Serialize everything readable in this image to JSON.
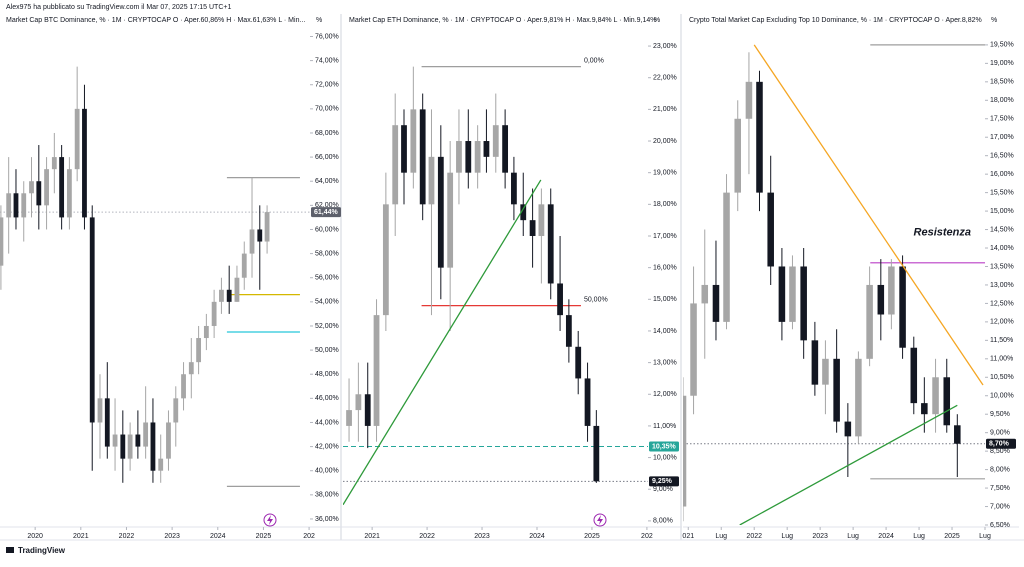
{
  "header": "Alex975 ha pubblicato su TradingView.com il Mar 07, 2025 17:15 UTC+1",
  "footer": "TradingView",
  "chart_data": [
    {
      "type": "candlestick",
      "title": "Market Cap BTC Dominance, % · 1M · CRYPTOCAP  O · Aper.60,86%  H · Max.61,63%  L · Min...",
      "unit_label": "%",
      "up_color": "#a6a6a6",
      "down_color": "#131722",
      "grid": false,
      "xlim": [
        2019.23,
        2026.02
      ],
      "ylim": [
        35.5,
        77.2
      ],
      "xticks": [
        2020,
        2021,
        2022,
        2023,
        2024,
        2025,
        {
          "value": 2026,
          "label": "202"
        }
      ],
      "yticks": [
        {
          "value": 36,
          "label": "36,00%"
        },
        {
          "value": 38,
          "label": "38,00%"
        },
        {
          "value": 40,
          "label": "40,00%"
        },
        {
          "value": 42,
          "label": "42,00%"
        },
        {
          "value": 44,
          "label": "44,00%"
        },
        {
          "value": 46,
          "label": "46,00%"
        },
        {
          "value": 48,
          "label": "48,00%"
        },
        {
          "value": 50,
          "label": "50,00%"
        },
        {
          "value": 52,
          "label": "52,00%"
        },
        {
          "value": 54,
          "label": "54,00%"
        },
        {
          "value": 56,
          "label": "56,00%"
        },
        {
          "value": 58,
          "label": "58,00%"
        },
        {
          "value": 60,
          "label": "60,00%"
        },
        {
          "value": 62,
          "label": "62,00%"
        },
        {
          "value": 64,
          "label": "64,00%"
        },
        {
          "value": 66,
          "label": "66,00%"
        },
        {
          "value": 68,
          "label": "68,00%"
        },
        {
          "value": 70,
          "label": "70,00%"
        },
        {
          "value": 72,
          "label": "72,00%"
        },
        {
          "value": 74,
          "label": "74,00%"
        },
        {
          "value": 76,
          "label": "76,00%"
        }
      ],
      "x": [
        2019.25,
        2019.42,
        2019.58,
        2019.75,
        2019.92,
        2020.08,
        2020.25,
        2020.42,
        2020.58,
        2020.75,
        2020.92,
        2021.08,
        2021.25,
        2021.42,
        2021.58,
        2021.75,
        2021.92,
        2022.08,
        2022.25,
        2022.42,
        2022.58,
        2022.75,
        2022.92,
        2023.08,
        2023.25,
        2023.42,
        2023.58,
        2023.75,
        2023.92,
        2024.08,
        2024.25,
        2024.42,
        2024.58,
        2024.75,
        2024.92,
        2025.08
      ],
      "candles": [
        [
          57,
          62,
          55,
          61
        ],
        [
          61,
          66,
          58,
          63
        ],
        [
          63,
          65,
          60,
          61
        ],
        [
          61,
          64,
          59,
          63
        ],
        [
          63,
          66,
          61,
          64
        ],
        [
          64,
          67,
          60,
          62
        ],
        [
          62,
          66,
          60,
          65
        ],
        [
          65,
          68,
          63,
          66
        ],
        [
          66,
          67,
          60,
          61
        ],
        [
          61,
          66,
          60,
          65
        ],
        [
          65,
          73.5,
          64,
          70
        ],
        [
          70,
          72,
          60,
          61
        ],
        [
          61,
          62,
          40,
          44
        ],
        [
          44,
          48,
          41,
          46
        ],
        [
          46,
          49,
          41,
          42
        ],
        [
          42,
          46,
          40,
          43
        ],
        [
          43,
          45,
          39,
          41
        ],
        [
          41,
          44,
          40,
          43
        ],
        [
          43,
          45,
          41,
          42
        ],
        [
          42,
          47,
          41,
          44
        ],
        [
          44,
          46,
          39,
          40
        ],
        [
          40,
          43,
          39,
          41
        ],
        [
          41,
          45,
          40,
          44
        ],
        [
          44,
          47,
          42,
          46
        ],
        [
          46,
          49,
          45,
          48
        ],
        [
          48,
          51,
          46,
          49
        ],
        [
          49,
          52,
          48,
          51
        ],
        [
          51,
          53,
          50,
          52
        ],
        [
          52,
          55,
          51,
          54
        ],
        [
          54,
          56,
          53,
          55
        ],
        [
          55,
          57,
          53,
          54
        ],
        [
          54,
          57,
          54,
          56
        ],
        [
          56,
          59,
          55,
          58
        ],
        [
          58,
          64.3,
          56,
          60
        ],
        [
          60,
          62,
          55,
          59
        ],
        [
          59,
          62,
          58,
          61.44
        ]
      ],
      "hlines": [
        {
          "value": 61.44,
          "color": "#b2b5be",
          "style": "dotted"
        },
        {
          "value": 64.3,
          "from": 2024.2,
          "to": 2025.8,
          "color": "#9e9e9e",
          "style": "solid"
        },
        {
          "value": 54.6,
          "from": 2024.2,
          "to": 2025.8,
          "color": "#d4b800",
          "style": "solid"
        },
        {
          "value": 51.5,
          "from": 2024.2,
          "to": 2025.8,
          "color": "#26c6da",
          "style": "solid"
        },
        {
          "value": 38.7,
          "from": 2024.2,
          "to": 2025.8,
          "color": "#9e9e9e",
          "style": "solid"
        }
      ],
      "trendlines": [],
      "price_labels": [
        {
          "value": 61.44,
          "label": "61,44%",
          "color": "#5d606b"
        }
      ]
    },
    {
      "type": "candlestick",
      "title": "Market Cap ETH Dominance, % · 1M · CRYPTOCAP  O · Aper.9,81%  H · Max.9,84%  L · Min.9,14%",
      "unit_label": "%",
      "up_color": "#a6a6a6",
      "down_color": "#131722",
      "grid": false,
      "xlim": [
        2020.47,
        2026.02
      ],
      "ylim": [
        7.87,
        23.76
      ],
      "xticks": [
        2021,
        2022,
        2023,
        2024,
        2025,
        {
          "value": 2026,
          "label": "202"
        }
      ],
      "yticks": [
        {
          "value": 8,
          "label": "8,00%"
        },
        {
          "value": 9,
          "label": "9,00%"
        },
        {
          "value": 10,
          "label": "10,00%"
        },
        {
          "value": 11,
          "label": "11,00%"
        },
        {
          "value": 12,
          "label": "12,00%"
        },
        {
          "value": 13,
          "label": "13,00%"
        },
        {
          "value": 14,
          "label": "14,00%"
        },
        {
          "value": 15,
          "label": "15,00%"
        },
        {
          "value": 16,
          "label": "16,00%"
        },
        {
          "value": 17,
          "label": "17,00%"
        },
        {
          "value": 18,
          "label": "18,00%"
        },
        {
          "value": 19,
          "label": "19,00%"
        },
        {
          "value": 20,
          "label": "20,00%"
        },
        {
          "value": 21,
          "label": "21,00%"
        },
        {
          "value": 22,
          "label": "22,00%"
        },
        {
          "value": 23,
          "label": "23,00%"
        }
      ],
      "x": [
        2020.58,
        2020.75,
        2020.92,
        2021.08,
        2021.25,
        2021.42,
        2021.58,
        2021.75,
        2021.92,
        2022.08,
        2022.25,
        2022.42,
        2022.58,
        2022.75,
        2022.92,
        2023.08,
        2023.25,
        2023.42,
        2023.58,
        2023.75,
        2023.92,
        2024.08,
        2024.25,
        2024.42,
        2024.58,
        2024.75,
        2024.92,
        2025.08
      ],
      "candles": [
        [
          11,
          12.5,
          10.5,
          11.5
        ],
        [
          11.5,
          13,
          10.5,
          12
        ],
        [
          12,
          13,
          10.3,
          11
        ],
        [
          11,
          15,
          10.5,
          14.5
        ],
        [
          14.5,
          19,
          14,
          18
        ],
        [
          18,
          21.5,
          17,
          20.5
        ],
        [
          20.5,
          21,
          18,
          19
        ],
        [
          19,
          22.35,
          18.5,
          21
        ],
        [
          21,
          21.5,
          17.5,
          18
        ],
        [
          18,
          21,
          14.5,
          19.5
        ],
        [
          19.5,
          20.5,
          15,
          16
        ],
        [
          16,
          20,
          14,
          19
        ],
        [
          19,
          21,
          18,
          20
        ],
        [
          20,
          21,
          18.5,
          19
        ],
        [
          19,
          20.5,
          18.5,
          20
        ],
        [
          20,
          21,
          19,
          19.5
        ],
        [
          19.5,
          21.5,
          19,
          20.5
        ],
        [
          20.5,
          21,
          18.5,
          19
        ],
        [
          19,
          19.5,
          17.5,
          18
        ],
        [
          18,
          19,
          17,
          17.5
        ],
        [
          17.5,
          18.5,
          16,
          17
        ],
        [
          17,
          18.5,
          15.5,
          18
        ],
        [
          18,
          18.5,
          15,
          15.5
        ],
        [
          15.5,
          17,
          14,
          14.5
        ],
        [
          14.5,
          15,
          13,
          13.5
        ],
        [
          13.5,
          14,
          12,
          12.5
        ],
        [
          12.5,
          13,
          10.5,
          11
        ],
        [
          11,
          11.5,
          9.2,
          9.25
        ]
      ],
      "hlines": [
        {
          "value": 10.35,
          "color": "#26a69a",
          "style": "dashed"
        },
        {
          "value": 9.25,
          "color": "#787b86",
          "style": "dotted"
        },
        {
          "value": 22.35,
          "from": 2021.9,
          "to": 2024.8,
          "color": "#9e9e9e",
          "style": "solid",
          "label": "0,00%",
          "label_position": "right"
        },
        {
          "value": 14.8,
          "from": 2021.9,
          "to": 2024.8,
          "color": "#e53935",
          "style": "solid",
          "label": "50,00%",
          "label_position": "right"
        }
      ],
      "trendlines": [
        {
          "x": [
            2020.47,
            2024.07
          ],
          "y": [
            8.51,
            18.77
          ],
          "color": "#2e9a3a"
        }
      ],
      "price_labels": [
        {
          "value": 10.35,
          "label": "10,35%",
          "color": "#26a69a"
        },
        {
          "value": 9.25,
          "label": "9,25%",
          "color": "#131722"
        }
      ]
    },
    {
      "type": "candlestick",
      "title": "Crypto Total Market Cap Excluding Top 10 Dominance, % · 1M · CRYPTOCAP  O · Aper.8,82%",
      "unit_label": "%",
      "up_color": "#a6a6a6",
      "down_color": "#131722",
      "grid": false,
      "xlim": [
        2020.92,
        2025.5
      ],
      "ylim": [
        6.5,
        20.12
      ],
      "xticks": [
        {
          "value": 2021,
          "label": "021"
        },
        {
          "value": 2021.5,
          "label": "Lug"
        },
        2022,
        {
          "value": 2022.5,
          "label": "Lug"
        },
        2023,
        {
          "value": 2023.5,
          "label": "Lug"
        },
        2024,
        {
          "value": 2024.5,
          "label": "Lug"
        },
        2025,
        {
          "value": 2025.5,
          "label": "Lug"
        }
      ],
      "yticks": [
        {
          "value": 6.5,
          "label": "6,50%"
        },
        {
          "value": 7,
          "label": "7,00%"
        },
        {
          "value": 7.5,
          "label": "7,50%"
        },
        {
          "value": 8,
          "label": "8,00%"
        },
        {
          "value": 8.5,
          "label": "8,50%"
        },
        {
          "value": 9,
          "label": "9,00%"
        },
        {
          "value": 9.5,
          "label": "9,50%"
        },
        {
          "value": 10,
          "label": "10,00%"
        },
        {
          "value": 10.5,
          "label": "10,50%"
        },
        {
          "value": 11,
          "label": "11,00%"
        },
        {
          "value": 11.5,
          "label": "11,50%"
        },
        {
          "value": 12,
          "label": "12,00%"
        },
        {
          "value": 12.5,
          "label": "12,50%"
        },
        {
          "value": 13,
          "label": "13,00%"
        },
        {
          "value": 13.5,
          "label": "13,50%"
        },
        {
          "value": 14,
          "label": "14,00%"
        },
        {
          "value": 14.5,
          "label": "14,50%"
        },
        {
          "value": 15,
          "label": "15,00%"
        },
        {
          "value": 15.5,
          "label": "15,50%"
        },
        {
          "value": 16,
          "label": "16,00%"
        },
        {
          "value": 16.5,
          "label": "16,50%"
        },
        {
          "value": 17,
          "label": "17,00%"
        },
        {
          "value": 17.5,
          "label": "17,50%"
        },
        {
          "value": 18,
          "label": "18,00%"
        },
        {
          "value": 18.5,
          "label": "18,50%"
        },
        {
          "value": 19,
          "label": "19,00%"
        },
        {
          "value": 19.5,
          "label": "19,50%"
        }
      ],
      "x": [
        2020.92,
        2021.08,
        2021.25,
        2021.42,
        2021.58,
        2021.75,
        2021.92,
        2022.08,
        2022.25,
        2022.42,
        2022.58,
        2022.75,
        2022.92,
        2023.08,
        2023.25,
        2023.42,
        2023.58,
        2023.75,
        2023.92,
        2024.08,
        2024.25,
        2024.42,
        2024.58,
        2024.75,
        2024.92,
        2025.08
      ],
      "candles": [
        [
          7,
          10.5,
          6.6,
          10
        ],
        [
          10,
          13.5,
          9.5,
          12.5
        ],
        [
          12.5,
          14.5,
          11,
          13
        ],
        [
          13,
          14.2,
          11.5,
          12
        ],
        [
          12,
          16,
          11.8,
          15.5
        ],
        [
          15.5,
          18,
          15,
          17.5
        ],
        [
          17.5,
          19.3,
          16,
          18.5
        ],
        [
          18.5,
          18.8,
          15,
          15.5
        ],
        [
          15.5,
          16.5,
          13,
          13.5
        ],
        [
          13.5,
          14,
          11.5,
          12
        ],
        [
          12,
          13.8,
          11.8,
          13.5
        ],
        [
          13.5,
          14,
          11,
          11.5
        ],
        [
          11.5,
          12,
          10,
          10.3
        ],
        [
          10.3,
          11.5,
          9.5,
          11
        ],
        [
          11,
          11.8,
          9,
          9.3
        ],
        [
          9.3,
          9.8,
          7.8,
          8.9
        ],
        [
          8.9,
          11.2,
          8.7,
          11
        ],
        [
          11,
          13.5,
          10.8,
          13
        ],
        [
          13,
          13.7,
          11.5,
          12.2
        ],
        [
          12.2,
          13.7,
          11.8,
          13.5
        ],
        [
          13.5,
          13.8,
          11,
          11.3
        ],
        [
          11.3,
          11.6,
          9.5,
          9.8
        ],
        [
          9.8,
          10.5,
          9,
          9.5
        ],
        [
          9.5,
          11,
          9,
          10.5
        ],
        [
          10.5,
          11,
          9,
          9.2
        ],
        [
          9.2,
          9.5,
          7.8,
          8.7
        ]
      ],
      "hlines": [
        {
          "value": 8.7,
          "color": "#787b86",
          "style": "dotted"
        },
        {
          "value": 19.5,
          "from": 2023.76,
          "to": 2025.5,
          "color": "#9e9e9e",
          "style": "solid"
        },
        {
          "value": 13.6,
          "from": 2023.76,
          "to": 2025.5,
          "color": "#ba3fc6",
          "style": "solid",
          "label": "Resistenza",
          "label_position": "above"
        },
        {
          "value": 7.75,
          "from": 2023.76,
          "to": 2025.5,
          "color": "#9e9e9e",
          "style": "solid"
        }
      ],
      "trendlines": [
        {
          "x": [
            2022.0,
            2025.47
          ],
          "y": [
            19.5,
            10.29
          ],
          "color": "#f5a623"
        },
        {
          "x": [
            2021.78,
            2025.08
          ],
          "y": [
            6.5,
            9.74
          ],
          "color": "#2e9a3a"
        }
      ],
      "price_labels": [
        {
          "value": 8.7,
          "label": "8,70%",
          "color": "#131722"
        }
      ]
    }
  ]
}
